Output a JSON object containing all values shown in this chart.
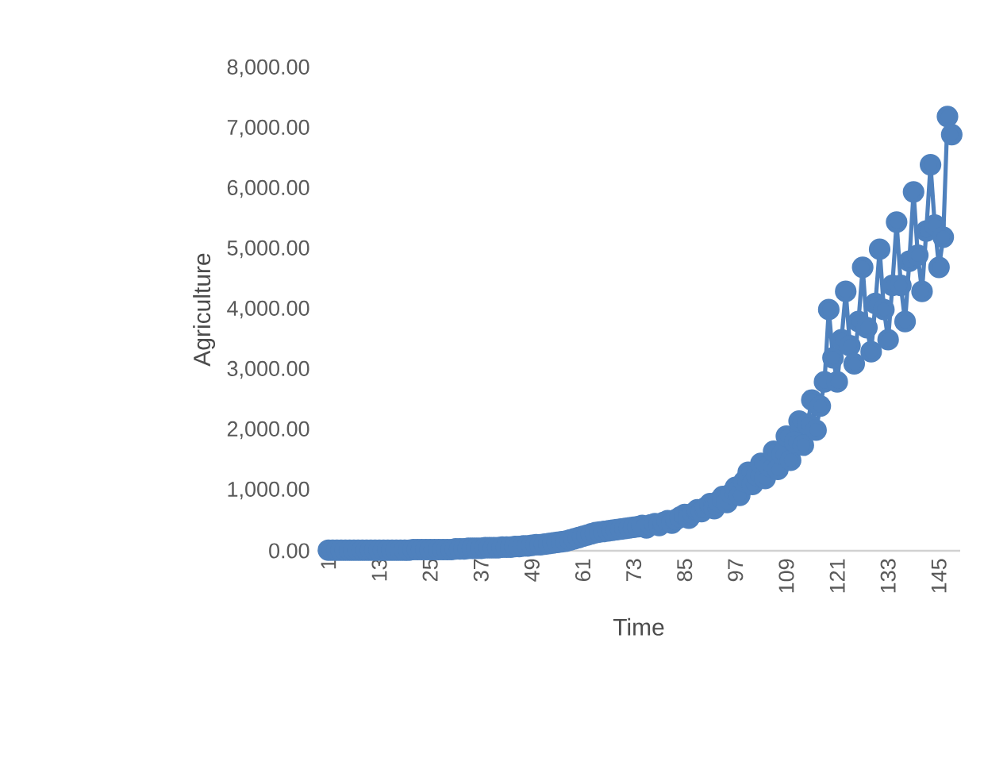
{
  "chart_data": {
    "type": "line",
    "xlabel": "Time",
    "ylabel": "Agriculture",
    "categories": [
      "1",
      null,
      null,
      null,
      null,
      null,
      null,
      null,
      null,
      null,
      null,
      null,
      "13",
      null,
      null,
      null,
      null,
      null,
      null,
      null,
      null,
      null,
      null,
      null,
      "25",
      null,
      null,
      null,
      null,
      null,
      null,
      null,
      null,
      null,
      null,
      null,
      "37",
      null,
      null,
      null,
      null,
      null,
      null,
      null,
      null,
      null,
      null,
      null,
      "49",
      null,
      null,
      null,
      null,
      null,
      null,
      null,
      null,
      null,
      null,
      null,
      "61",
      null,
      null,
      null,
      null,
      null,
      null,
      null,
      null,
      null,
      null,
      null,
      "73",
      null,
      null,
      null,
      null,
      null,
      null,
      null,
      null,
      null,
      null,
      null,
      "85",
      null,
      null,
      null,
      null,
      null,
      null,
      null,
      null,
      null,
      null,
      null,
      "97",
      null,
      null,
      null,
      null,
      null,
      null,
      null,
      null,
      null,
      null,
      null,
      "109",
      null,
      null,
      null,
      null,
      null,
      null,
      null,
      null,
      null,
      null,
      null,
      "121",
      null,
      null,
      null,
      null,
      null,
      null,
      null,
      null,
      null,
      null,
      null,
      "133",
      null,
      null,
      null,
      null,
      null,
      null,
      null,
      null,
      null,
      null,
      null,
      "145",
      null,
      null,
      null
    ],
    "series": [
      {
        "color": "#4f81bd",
        "values": [
          10,
          10,
          10,
          10,
          10,
          10,
          10,
          10,
          10,
          10,
          10,
          10,
          10,
          10,
          10,
          10,
          10,
          10,
          10,
          10,
          20,
          20,
          20,
          20,
          20,
          20,
          20,
          20,
          20,
          20,
          30,
          30,
          30,
          40,
          40,
          40,
          40,
          50,
          50,
          50,
          50,
          60,
          60,
          60,
          70,
          70,
          80,
          80,
          90,
          100,
          100,
          110,
          120,
          130,
          140,
          150,
          160,
          180,
          200,
          220,
          240,
          260,
          280,
          300,
          310,
          320,
          330,
          340,
          350,
          360,
          370,
          380,
          390,
          400,
          420,
          380,
          430,
          450,
          420,
          470,
          500,
          460,
          520,
          560,
          600,
          540,
          620,
          680,
          650,
          720,
          780,
          700,
          820,
          900,
          800,
          950,
          1050,
          920,
          1150,
          1300,
          1100,
          1250,
          1450,
          1200,
          1400,
          1650,
          1350,
          1600,
          1900,
          1500,
          1800,
          2150,
          1750,
          2100,
          2500,
          2000,
          2400,
          2800,
          4000,
          3200,
          2800,
          3500,
          4300,
          3400,
          3100,
          3800,
          4700,
          3700,
          3300,
          4100,
          5000,
          4000,
          3500,
          4400,
          5450,
          4400,
          3800,
          4800,
          5950,
          4900,
          4300,
          5300,
          6400,
          5400,
          4700,
          5200,
          7200,
          6900
        ]
      }
    ],
    "ylim": [
      0,
      8000
    ],
    "yticks": [
      {
        "value": 0,
        "label": "0.00"
      },
      {
        "value": 1000,
        "label": "1,000.00"
      },
      {
        "value": 2000,
        "label": "2,000.00"
      },
      {
        "value": 3000,
        "label": "3,000.00"
      },
      {
        "value": 4000,
        "label": "4,000.00"
      },
      {
        "value": 5000,
        "label": "5,000.00"
      },
      {
        "value": 6000,
        "label": "6,000.00"
      },
      {
        "value": 7000,
        "label": "7,000.00"
      },
      {
        "value": 8000,
        "label": "8,000.00"
      }
    ],
    "marker": "circle",
    "line_style": "solid"
  }
}
